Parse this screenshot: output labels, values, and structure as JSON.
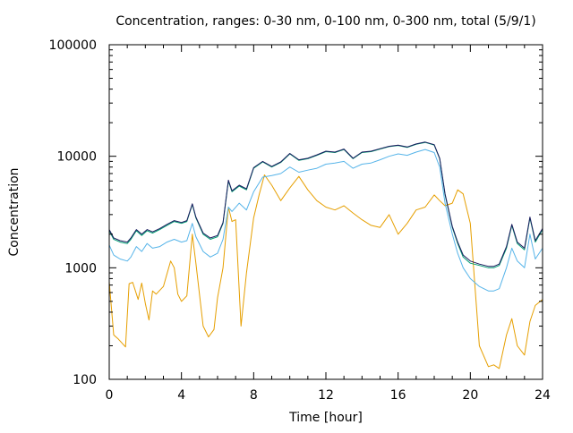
{
  "chart_data": {
    "type": "line",
    "title": "Concentration, ranges: 0-30 nm, 0-100 nm, 0-300 nm, total (5/9/1)",
    "xlabel": "Time [hour]",
    "ylabel": "Concentration",
    "xlim": [
      0,
      24
    ],
    "ylim": [
      100,
      100000
    ],
    "y_scale": "log",
    "grid": false,
    "legend": "none",
    "x_ticks": [
      0,
      4,
      8,
      12,
      16,
      20,
      24
    ],
    "x_tick_labels": [
      "0",
      "4",
      "8",
      "12",
      "16",
      "20",
      "24"
    ],
    "y_ticks": [
      100,
      1000,
      10000,
      100000
    ],
    "y_tick_labels": [
      "100",
      "1000",
      "10000",
      "100000"
    ],
    "series": [
      {
        "color": "#e69f00",
        "x": [
          0,
          0.25,
          0.5,
          0.9,
          1.1,
          1.3,
          1.6,
          1.8,
          2.0,
          2.2,
          2.4,
          2.6,
          3.0,
          3.4,
          3.6,
          3.8,
          4.0,
          4.3,
          4.6,
          4.8,
          5.2,
          5.5,
          5.8,
          6.0,
          6.3,
          6.6,
          6.8,
          7.0,
          7.3,
          7.6,
          8.0,
          8.3,
          8.6,
          9.0,
          9.5,
          10.0,
          10.5,
          11.0,
          11.5,
          12.0,
          12.5,
          13.0,
          13.5,
          14.0,
          14.5,
          15.0,
          15.5,
          16.0,
          16.5,
          17.0,
          17.5,
          18.0,
          18.3,
          18.6,
          19.0,
          19.3,
          19.6,
          20.0,
          20.5,
          21.0,
          21.3,
          21.6,
          22.0,
          22.3,
          22.6,
          23.0,
          23.3,
          23.6,
          24.0
        ],
        "values": [
          750,
          250,
          230,
          195,
          720,
          740,
          520,
          730,
          480,
          340,
          620,
          580,
          680,
          1150,
          1000,
          580,
          500,
          560,
          2000,
          1100,
          300,
          240,
          280,
          540,
          1000,
          3500,
          2600,
          2700,
          300,
          900,
          2800,
          4500,
          6800,
          5500,
          4000,
          5200,
          6600,
          5000,
          4000,
          3500,
          3300,
          3600,
          3100,
          2700,
          2400,
          2300,
          3000,
          2000,
          2500,
          3300,
          3500,
          4500,
          4000,
          3600,
          3800,
          5000,
          4600,
          2500,
          200,
          130,
          135,
          125,
          250,
          350,
          200,
          165,
          330,
          460,
          520
        ]
      },
      {
        "color": "#56b4e9",
        "x": [
          0,
          0.25,
          0.6,
          1.0,
          1.2,
          1.5,
          1.8,
          2.1,
          2.4,
          2.8,
          3.2,
          3.6,
          4.0,
          4.3,
          4.6,
          4.8,
          5.2,
          5.6,
          6.0,
          6.3,
          6.6,
          6.8,
          7.2,
          7.6,
          8.0,
          8.5,
          9.0,
          9.5,
          10.0,
          10.5,
          11.0,
          11.5,
          12.0,
          12.5,
          13.0,
          13.5,
          14.0,
          14.5,
          15.0,
          15.5,
          16.0,
          16.5,
          17.0,
          17.5,
          18.0,
          18.3,
          18.6,
          19.0,
          19.3,
          19.6,
          20.0,
          20.5,
          21.0,
          21.3,
          21.6,
          22.0,
          22.3,
          22.6,
          23.0,
          23.3,
          23.6,
          24.0
        ],
        "values": [
          1600,
          1300,
          1200,
          1150,
          1250,
          1550,
          1400,
          1650,
          1500,
          1550,
          1700,
          1800,
          1700,
          1750,
          2500,
          1900,
          1400,
          1250,
          1350,
          1800,
          3500,
          3200,
          3800,
          3300,
          4800,
          6500,
          6700,
          7000,
          8000,
          7200,
          7500,
          7800,
          8500,
          8700,
          9000,
          7800,
          8500,
          8700,
          9300,
          10000,
          10500,
          10200,
          10900,
          11500,
          10800,
          8000,
          3800,
          2000,
          1350,
          1000,
          800,
          680,
          620,
          620,
          650,
          1000,
          1500,
          1150,
          1000,
          2000,
          1200,
          1500
        ]
      },
      {
        "color": "#009e73",
        "x": [
          0,
          0.25,
          0.6,
          1.0,
          1.2,
          1.5,
          1.8,
          2.1,
          2.4,
          2.8,
          3.2,
          3.6,
          4.0,
          4.3,
          4.6,
          4.8,
          5.2,
          5.6,
          6.0,
          6.3,
          6.6,
          6.8,
          7.2,
          7.6,
          8.0,
          8.5,
          9.0,
          9.5,
          10.0,
          10.5,
          11.0,
          11.5,
          12.0,
          12.5,
          13.0,
          13.5,
          14.0,
          14.5,
          15.0,
          15.5,
          16.0,
          16.5,
          17.0,
          17.5,
          18.0,
          18.3,
          18.6,
          19.0,
          19.3,
          19.6,
          20.0,
          20.5,
          21.0,
          21.3,
          21.6,
          22.0,
          22.3,
          22.6,
          23.0,
          23.3,
          23.6,
          24.0
        ],
        "values": [
          2150,
          1800,
          1700,
          1650,
          1800,
          2150,
          1950,
          2150,
          2050,
          2200,
          2400,
          2600,
          2500,
          2600,
          3700,
          2800,
          2000,
          1800,
          1900,
          2500,
          6000,
          4800,
          5400,
          5000,
          7800,
          8900,
          8000,
          8800,
          10500,
          9200,
          9500,
          10200,
          11000,
          10800,
          11500,
          9500,
          10800,
          11000,
          11600,
          12200,
          12500,
          12000,
          12800,
          13300,
          12600,
          9500,
          4500,
          2300,
          1650,
          1250,
          1100,
          1050,
          1000,
          1000,
          1050,
          1500,
          2400,
          1650,
          1450,
          2800,
          1700,
          2200
        ]
      },
      {
        "color": "#1a1a5e",
        "x": [
          0,
          0.25,
          0.6,
          1.0,
          1.2,
          1.5,
          1.8,
          2.1,
          2.4,
          2.8,
          3.2,
          3.6,
          4.0,
          4.3,
          4.6,
          4.8,
          5.2,
          5.6,
          6.0,
          6.3,
          6.6,
          6.8,
          7.2,
          7.6,
          8.0,
          8.5,
          9.0,
          9.5,
          10.0,
          10.5,
          11.0,
          11.5,
          12.0,
          12.5,
          13.0,
          13.5,
          14.0,
          14.5,
          15.0,
          15.5,
          16.0,
          16.5,
          17.0,
          17.5,
          18.0,
          18.3,
          18.6,
          19.0,
          19.3,
          19.6,
          20.0,
          20.5,
          21.0,
          21.3,
          21.6,
          22.0,
          22.3,
          22.6,
          23.0,
          23.3,
          23.6,
          24.0
        ],
        "values": [
          2200,
          1850,
          1750,
          1700,
          1850,
          2200,
          2000,
          2200,
          2100,
          2250,
          2450,
          2650,
          2550,
          2650,
          3750,
          2850,
          2050,
          1850,
          1950,
          2550,
          6100,
          4900,
          5500,
          5100,
          7900,
          9000,
          8100,
          8900,
          10600,
          9300,
          9600,
          10300,
          11100,
          10900,
          11600,
          9600,
          10900,
          11100,
          11700,
          12300,
          12600,
          12100,
          12900,
          13400,
          12700,
          9600,
          4600,
          2350,
          1700,
          1300,
          1150,
          1080,
          1030,
          1030,
          1080,
          1550,
          2450,
          1700,
          1500,
          2850,
          1750,
          2250
        ]
      }
    ]
  }
}
